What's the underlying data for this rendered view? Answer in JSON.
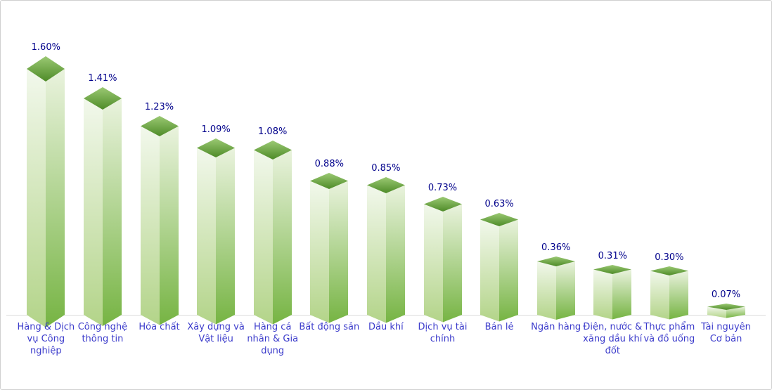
{
  "chart_data": {
    "type": "bar",
    "style": "3d-column-green",
    "title": "",
    "xlabel": "",
    "ylabel": "",
    "unit": "%",
    "legend": "none",
    "axes_visible": false,
    "grid": false,
    "categories": [
      "Hàng & Dịch vụ Công nghiệp",
      "Công nghệ thông tin",
      "Hóa chất",
      "Xây dựng và Vật liệu",
      "Hàng cá nhân & Gia dụng",
      "Bất động sản",
      "Dầu khí",
      "Dịch vụ tài chính",
      "Bán lẻ",
      "Ngân hàng",
      "Điện, nước & xăng dầu khí đốt",
      "Thực phẩm và đồ uống",
      "Tài nguyên Cơ bản"
    ],
    "values": [
      1.6,
      1.41,
      1.23,
      1.09,
      1.08,
      0.88,
      0.85,
      0.73,
      0.63,
      0.36,
      0.31,
      0.3,
      0.07
    ],
    "value_labels": [
      "1.60%",
      "1.41%",
      "1.23%",
      "1.09%",
      "1.08%",
      "0.88%",
      "0.85%",
      "0.73%",
      "0.63%",
      "0.36%",
      "0.31%",
      "0.30%",
      "0.07%"
    ],
    "ylim": [
      0,
      1.75
    ],
    "colors": {
      "top_face_light": "#9bc973",
      "top_face_dark": "#4e8b28",
      "left_face_light": "#f2f8ec",
      "left_face_dark": "#b3d489",
      "right_face_light": "#eaf3de",
      "right_face_dark": "#76b443",
      "value_label": "#00008b",
      "category_label": "#3b3bcb",
      "baseline": "#dcdcdc",
      "frame_border": "#d0d0d0",
      "background": "#ffffff"
    }
  }
}
